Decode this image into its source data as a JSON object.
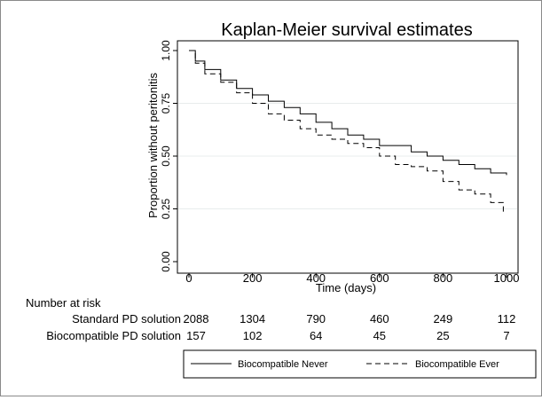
{
  "chart_data": {
    "type": "line",
    "title": "Kaplan-Meier survival estimates",
    "xlabel": "Time (days)",
    "ylabel": "Proportion without peritonitis",
    "xlim": [
      0,
      1000
    ],
    "ylim": [
      0,
      1
    ],
    "xticks": [
      "0",
      "200",
      "400",
      "600",
      "800",
      "1000"
    ],
    "yticks": [
      "0.00",
      "0.25",
      "0.50",
      "0.75",
      "1.00"
    ],
    "grid": true,
    "legend_position": "bottom",
    "series": [
      {
        "name": "Biocompatible Never",
        "style": "solid",
        "color": "#000000",
        "x": [
          0,
          20,
          50,
          100,
          150,
          200,
          250,
          300,
          350,
          400,
          450,
          500,
          550,
          600,
          650,
          700,
          750,
          800,
          850,
          900,
          950,
          1000
        ],
        "y": [
          1.0,
          0.95,
          0.91,
          0.86,
          0.82,
          0.79,
          0.76,
          0.73,
          0.7,
          0.66,
          0.63,
          0.6,
          0.58,
          0.55,
          0.55,
          0.52,
          0.5,
          0.48,
          0.46,
          0.44,
          0.42,
          0.41
        ]
      },
      {
        "name": "Biocompatible Ever",
        "style": "dashed",
        "color": "#000000",
        "x": [
          0,
          20,
          50,
          100,
          150,
          200,
          250,
          300,
          350,
          400,
          450,
          500,
          550,
          600,
          650,
          700,
          750,
          800,
          850,
          900,
          950,
          990
        ],
        "y": [
          1.0,
          0.94,
          0.89,
          0.85,
          0.8,
          0.75,
          0.7,
          0.67,
          0.63,
          0.6,
          0.58,
          0.56,
          0.54,
          0.5,
          0.46,
          0.45,
          0.43,
          0.38,
          0.34,
          0.32,
          0.28,
          0.22
        ]
      }
    ]
  },
  "risk_table": {
    "heading": "Number at risk",
    "rows": [
      {
        "label": "Standard PD solution",
        "values": [
          "2088",
          "1304",
          "790",
          "460",
          "249",
          "112"
        ]
      },
      {
        "label": "Biocompatible PD solution",
        "values": [
          "157",
          "102",
          "64",
          "45",
          "25",
          "7"
        ]
      }
    ]
  },
  "colors": {
    "background": "#ffffff",
    "plot_border": "#000000",
    "grid": "#e8ecec",
    "frame": "#8a8a8a"
  }
}
